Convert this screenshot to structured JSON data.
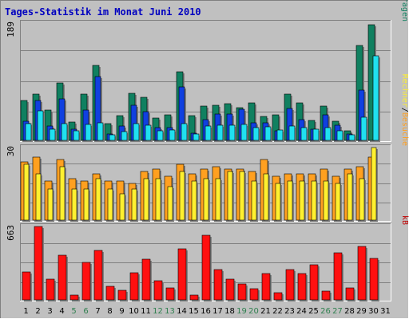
{
  "title": "Tages-Statistik im Monat Juni 2010",
  "colors": {
    "background": "#C0C0C0",
    "frame_light": "#FFFFFF",
    "frame_dark": "#808080",
    "title": "#0000C0",
    "grid": "#808080",
    "tick_weekday": "#000000",
    "tick_weekend": "#308050",
    "hits": "#108060",
    "files": "#1040E0",
    "pages": "#20E0F0",
    "visits": "#FFA020",
    "sites": "#FFF030",
    "kbytes": "#FF1010",
    "kbytes_label": "#C00000",
    "slash": "#000000"
  },
  "chart_data": [
    {
      "id": "hits-files-pages",
      "type": "bar",
      "scale_label": "189",
      "ylim": [
        0,
        189
      ],
      "legend": {
        "placement": "right",
        "parts": [
          {
            "text": "Anfragen",
            "color_key": "hits"
          },
          {
            "text": "/",
            "color_key": "slash"
          },
          {
            "text": "Dateien",
            "color_key": "files"
          },
          {
            "text": "/",
            "color_key": "slash"
          },
          {
            "text": "Seiten",
            "color_key": "pages"
          }
        ]
      },
      "series": [
        {
          "name": "Anfragen",
          "color_key": "hits",
          "values": [
            64,
            74,
            49,
            93,
            30,
            75,
            121,
            27,
            40,
            76,
            70,
            36,
            41,
            111,
            40,
            55,
            56,
            59,
            53,
            61,
            38,
            41,
            75,
            60,
            32,
            55,
            31,
            15,
            153,
            187,
            0
          ]
        },
        {
          "name": "Dateien",
          "color_key": "files",
          "values": [
            31,
            64,
            23,
            67,
            18,
            49,
            103,
            10,
            23,
            56,
            46,
            21,
            21,
            86,
            11,
            33,
            42,
            42,
            50,
            28,
            28,
            16,
            52,
            34,
            18,
            41,
            24,
            10,
            81,
            0,
            0
          ]
        },
        {
          "name": "Seiten",
          "color_key": "pages",
          "values": [
            27,
            47,
            18,
            27,
            15,
            26,
            28,
            9,
            14,
            27,
            25,
            15,
            17,
            27,
            10,
            23,
            25,
            24,
            26,
            20,
            22,
            17,
            23,
            21,
            18,
            21,
            15,
            9,
            37,
            136,
            0
          ]
        }
      ]
    },
    {
      "id": "visits-sites",
      "type": "bar",
      "scale_label": "30",
      "ylim": [
        0,
        30
      ],
      "legend": {
        "placement": "right",
        "parts": [
          {
            "text": "Besuche",
            "color_key": "visits"
          },
          {
            "text": "/",
            "color_key": "slash"
          },
          {
            "text": "Rechner",
            "color_key": "sites"
          }
        ]
      },
      "series": [
        {
          "name": "Besuche",
          "color_key": "visits",
          "values": [
            24,
            26,
            16,
            25,
            17,
            16,
            19,
            16,
            16,
            15,
            20,
            21,
            18,
            23,
            19,
            21,
            22,
            21,
            21,
            20,
            25,
            18,
            19,
            19,
            19,
            21,
            18,
            21,
            22,
            26,
            0
          ]
        },
        {
          "name": "Rechner",
          "color_key": "sites",
          "values": [
            23,
            19,
            13,
            22,
            13,
            13,
            17,
            13,
            11,
            13,
            17,
            17,
            14,
            20,
            16,
            17,
            17,
            20,
            20,
            16,
            19,
            15,
            16,
            16,
            16,
            16,
            15,
            19,
            17,
            30,
            0
          ]
        }
      ]
    },
    {
      "id": "kbytes",
      "type": "bar",
      "scale_label": "663",
      "ylim": [
        0,
        663
      ],
      "legend": {
        "placement": "right",
        "parts": [
          {
            "text": "kB",
            "color_key": "kbytes_label"
          }
        ]
      },
      "series": [
        {
          "name": "kB",
          "color_key": "kbytes",
          "values": [
            253,
            663,
            188,
            400,
            40,
            336,
            448,
            120,
            86,
            243,
            369,
            170,
            105,
            458,
            44,
            585,
            277,
            190,
            145,
            103,
            235,
            65,
            271,
            237,
            320,
            76,
            422,
            110,
            485,
            378,
            0
          ]
        }
      ]
    }
  ],
  "x_axis": {
    "labels": [
      "1",
      "2",
      "3",
      "4",
      "5",
      "6",
      "7",
      "8",
      "9",
      "10",
      "11",
      "12",
      "13",
      "14",
      "15",
      "16",
      "17",
      "18",
      "19",
      "20",
      "21",
      "22",
      "23",
      "24",
      "25",
      "26",
      "27",
      "28",
      "29",
      "30",
      "31"
    ],
    "weekend": [
      5,
      6,
      12,
      13,
      19,
      20,
      26,
      27
    ]
  }
}
